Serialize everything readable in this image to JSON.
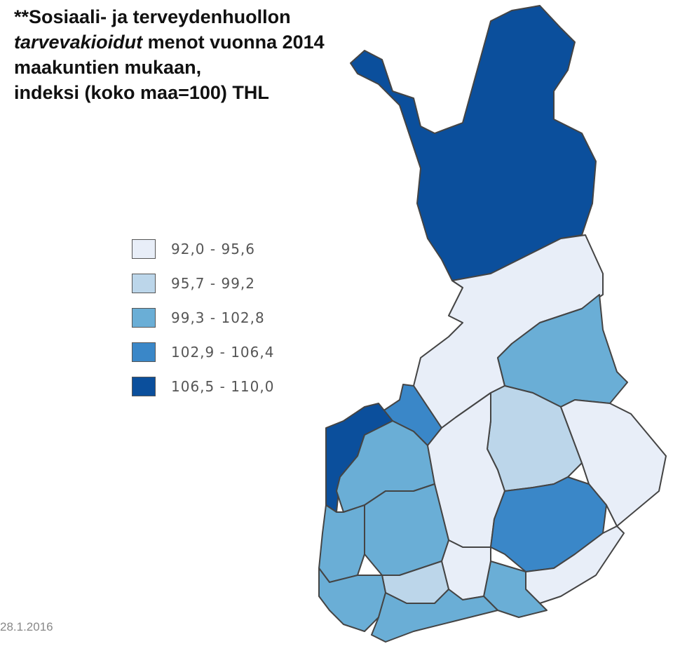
{
  "title": {
    "lines": [
      [
        {
          "text": "**Sosiaali- ja terveydenhuollon",
          "style": "bold"
        }
      ],
      [
        {
          "text": "tarvevakioidut",
          "style": "bold-italic"
        },
        {
          "text": " menot vuonna 2014",
          "style": "bold"
        }
      ],
      [
        {
          "text": "maakuntien mukaan,",
          "style": "bold"
        }
      ],
      [
        {
          "text": "indeksi (koko maa=100) THL",
          "style": "bold"
        }
      ]
    ]
  },
  "legend": {
    "items": [
      {
        "label": "92,0 - 95,6",
        "color": "#e8eef8"
      },
      {
        "label": "95,7 - 99,2",
        "color": "#bcd6ea"
      },
      {
        "label": "99,3 - 102,8",
        "color": "#6aaed6"
      },
      {
        "label": "102,9 - 106,4",
        "color": "#3a87c8"
      },
      {
        "label": "106,5 - 110,0",
        "color": "#0b4f9c"
      }
    ]
  },
  "footer": {
    "date": "28.1.2016"
  }
}
